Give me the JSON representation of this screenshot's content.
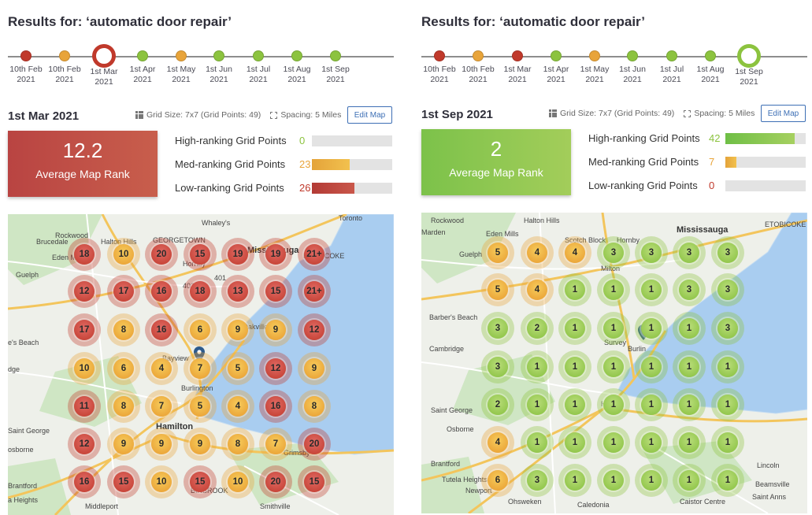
{
  "colors": {
    "red": "#c0392b",
    "orange": "#e8a43a",
    "green": "#8cc33f",
    "lake": "#a9cdf0",
    "park": "#cfe6c4"
  },
  "panels": [
    {
      "results_title": "Results for: ‘automatic door repair’",
      "timeline": [
        {
          "date": "10th Feb",
          "year": "2021",
          "color": "red"
        },
        {
          "date": "10th Feb",
          "year": "2021",
          "color": "orange"
        },
        {
          "date": "1st Mar",
          "year": "2021",
          "color": "red",
          "selected": true
        },
        {
          "date": "1st Apr",
          "year": "2021",
          "color": "green"
        },
        {
          "date": "1st May",
          "year": "2021",
          "color": "orange"
        },
        {
          "date": "1st Jun",
          "year": "2021",
          "color": "green"
        },
        {
          "date": "1st Jul",
          "year": "2021",
          "color": "green"
        },
        {
          "date": "1st Aug",
          "year": "2021",
          "color": "green"
        },
        {
          "date": "1st Sep",
          "year": "2021",
          "color": "green"
        }
      ],
      "date_title": "1st Mar 2021",
      "grid_size": "Grid Size: 7x7 (Grid Points: 49)",
      "spacing": "Spacing: 5 Miles",
      "edit_label": "Edit Map",
      "avg_value": "12.2",
      "avg_label": "Average Map Rank",
      "avg_color": "red",
      "stats": [
        {
          "label": "High-ranking Grid Points",
          "count": "0",
          "fraction": 0,
          "color": "green"
        },
        {
          "label": "Med-ranking Grid Points",
          "count": "23",
          "fraction": 0.47,
          "color": "orange"
        },
        {
          "label": "Low-ranking Grid Points",
          "count": "26",
          "fraction": 0.53,
          "color": "red"
        }
      ],
      "grid": [
        [
          "18",
          "10",
          "20",
          "15",
          "19",
          "19",
          "21+"
        ],
        [
          "12",
          "17",
          "16",
          "18",
          "13",
          "15",
          "21+"
        ],
        [
          "17",
          "8",
          "16",
          "6",
          "9",
          "9",
          "12"
        ],
        [
          "10",
          "6",
          "4",
          "7",
          "5",
          "12",
          "9"
        ],
        [
          "11",
          "8",
          "7",
          "5",
          "4",
          "16",
          "8"
        ],
        [
          "12",
          "9",
          "9",
          "9",
          "8",
          "7",
          "20"
        ],
        [
          "16",
          "15",
          "10",
          "15",
          "10",
          "20",
          "15"
        ]
      ],
      "map_labels": [
        "Brucedale",
        "Halton Hills",
        "GEORGETOWN",
        "Toronto",
        "Rockwood",
        "Whaley's",
        "ETOBICOKE",
        "Eden Mills",
        "Hornby",
        "Mississauga",
        "Guelph",
        "401",
        "403",
        "Oakville",
        "e's Beach",
        "Bayview",
        "dge",
        "Burlington",
        "Hamilton",
        "Saint George",
        "osborne",
        "Grimsby",
        "Brantford",
        "a Heights",
        "Middleport",
        "BINBROOK",
        "Smithville"
      ]
    },
    {
      "results_title": "Results for: ‘automatic door repair’",
      "timeline": [
        {
          "date": "10th Feb",
          "year": "2021",
          "color": "red"
        },
        {
          "date": "10th Feb",
          "year": "2021",
          "color": "orange"
        },
        {
          "date": "1st Mar",
          "year": "2021",
          "color": "red"
        },
        {
          "date": "1st Apr",
          "year": "2021",
          "color": "green"
        },
        {
          "date": "1st May",
          "year": "2021",
          "color": "orange"
        },
        {
          "date": "1st Jun",
          "year": "2021",
          "color": "green"
        },
        {
          "date": "1st Jul",
          "year": "2021",
          "color": "green"
        },
        {
          "date": "1st Aug",
          "year": "2021",
          "color": "green"
        },
        {
          "date": "1st Sep",
          "year": "2021",
          "color": "green",
          "selected": true
        }
      ],
      "date_title": "1st Sep 2021",
      "grid_size": "Grid Size: 7x7 (Grid Points: 49)",
      "spacing": "Spacing: 5 Miles",
      "edit_label": "Edit Map",
      "avg_value": "2",
      "avg_label": "Average Map Rank",
      "avg_color": "green",
      "stats": [
        {
          "label": "High-ranking Grid Points",
          "count": "42",
          "fraction": 0.86,
          "color": "green"
        },
        {
          "label": "Med-ranking Grid Points",
          "count": "7",
          "fraction": 0.14,
          "color": "orange"
        },
        {
          "label": "Low-ranking Grid Points",
          "count": "0",
          "fraction": 0,
          "color": "red"
        }
      ],
      "grid": [
        [
          "5",
          "4",
          "4",
          "3",
          "3",
          "3",
          "3"
        ],
        [
          "5",
          "4",
          "1",
          "1",
          "1",
          "3",
          "3"
        ],
        [
          "3",
          "2",
          "1",
          "1",
          "1",
          "1",
          "3"
        ],
        [
          "3",
          "1",
          "1",
          "1",
          "1",
          "1",
          "1"
        ],
        [
          "2",
          "1",
          "1",
          "1",
          "1",
          "1",
          "1"
        ],
        [
          "4",
          "1",
          "1",
          "1",
          "1",
          "1",
          "1"
        ],
        [
          "6",
          "3",
          "1",
          "1",
          "1",
          "1",
          "1"
        ]
      ],
      "map_labels": [
        "Rockwood",
        "Halton Hills",
        "ETOBICOKE",
        "Marden",
        "Eden Mills",
        "Scotch Block",
        "Hornby",
        "Mississauga",
        "Guelph",
        "Milton",
        "Barber's Beach",
        "Cambridge",
        "Survey",
        "Burlin",
        "Saint George",
        "Osborne",
        "Ha",
        "Brantford",
        "Tutela Heights",
        "Newport",
        "Lincoln",
        "Ohsweken",
        "Caledonia",
        "Saint Anns",
        "Caistor Centre",
        "Beamsville"
      ]
    }
  ]
}
